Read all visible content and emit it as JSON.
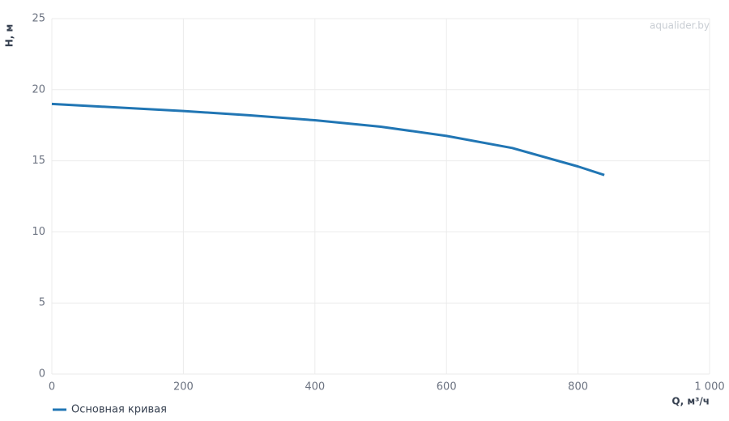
{
  "chart_data": {
    "type": "line",
    "watermark": "aqualider.by",
    "x_label": "Q, м³/ч",
    "y_label": "H, м",
    "x": [
      0,
      100,
      200,
      300,
      400,
      500,
      600,
      700,
      800,
      840
    ],
    "series": [
      {
        "name": "Основная кривая",
        "color": "#2176b4",
        "values": [
          19,
          18.75,
          18.5,
          18.2,
          17.85,
          17.4,
          16.75,
          15.9,
          14.6,
          14.0
        ]
      }
    ],
    "xlim": [
      0,
      1000
    ],
    "xticks": [
      0,
      200,
      400,
      600,
      800,
      {
        "value": 1000,
        "label": "1 000"
      }
    ],
    "ylim": [
      0,
      25
    ],
    "yticks": [
      0,
      5,
      10,
      15,
      20,
      25
    ],
    "grid": true,
    "legend": "bottom-left"
  }
}
